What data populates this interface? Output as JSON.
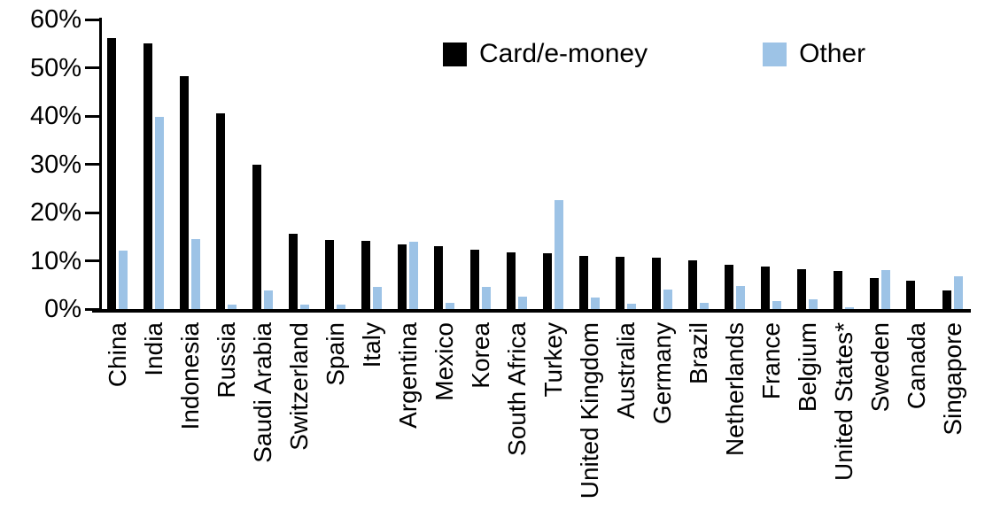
{
  "chart_data": {
    "type": "bar",
    "title": "",
    "xlabel": "",
    "ylabel": "",
    "ylim": [
      0,
      60
    ],
    "yticks": [
      "0%",
      "10%",
      "20%",
      "30%",
      "40%",
      "50%",
      "60%"
    ],
    "grid": false,
    "legend_position": "top-center",
    "categories": [
      "China",
      "India",
      "Indonesia",
      "Russia",
      "Saudi Arabia",
      "Switzerland",
      "Spain",
      "Italy",
      "Argentina",
      "Mexico",
      "Korea",
      "South Africa",
      "Turkey",
      "United Kingdom",
      "Australia",
      "Germany",
      "Brazil",
      "Netherlands",
      "France",
      "Belgium",
      "United States*",
      "Sweden",
      "Canada",
      "Singapore"
    ],
    "series": [
      {
        "name": "Card/e-money",
        "color": "#000000",
        "values": [
          56.2,
          55.0,
          48.3,
          40.6,
          29.9,
          15.6,
          14.3,
          14.1,
          13.4,
          13.0,
          12.3,
          11.7,
          11.6,
          11.1,
          10.8,
          10.7,
          10.0,
          9.2,
          8.8,
          8.2,
          7.9,
          6.5,
          5.9,
          3.9
        ]
      },
      {
        "name": "Other",
        "color": "#9DC3E6",
        "values": [
          12.2,
          39.8,
          14.5,
          1.0,
          3.9,
          0.9,
          1.0,
          4.6,
          13.9,
          1.3,
          4.6,
          2.5,
          22.6,
          2.4,
          1.1,
          4.0,
          1.2,
          4.8,
          1.6,
          2.1,
          0.4,
          8.1,
          0.0,
          6.7
        ]
      }
    ]
  }
}
